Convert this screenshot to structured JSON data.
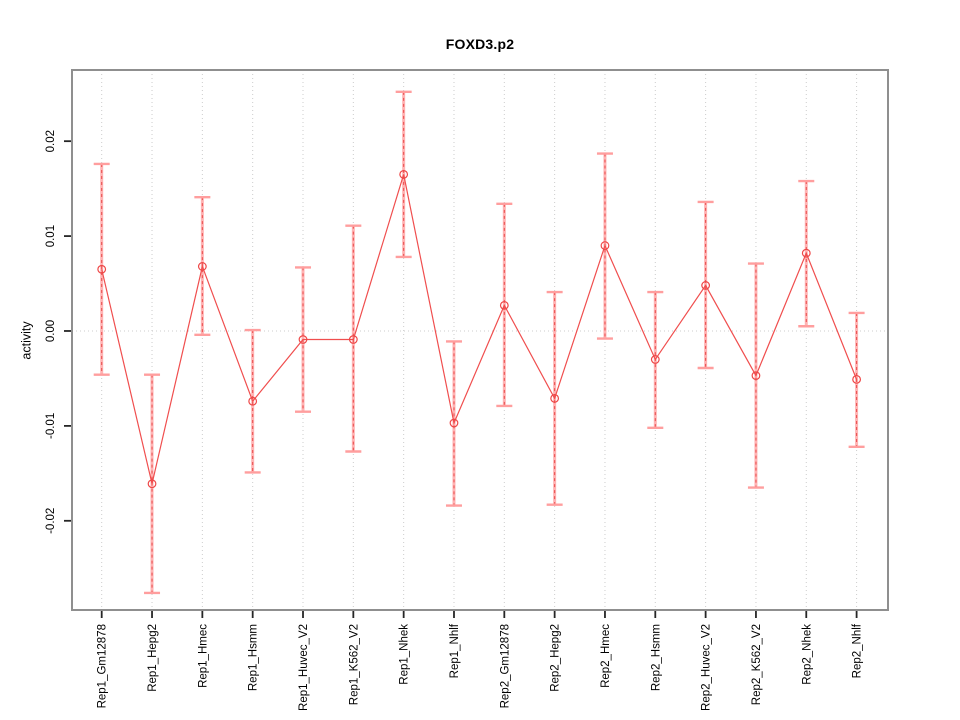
{
  "figure": {
    "title": "FOXD3.p2",
    "ylabel": "activity"
  },
  "chart_data": {
    "type": "line",
    "title": "FOXD3.p2",
    "xlabel": "",
    "ylabel": "activity",
    "categories": [
      "Rep1_Gm12878",
      "Rep1_Hepg2",
      "Rep1_Hmec",
      "Rep1_Hsmm",
      "Rep1_Huvec_V2",
      "Rep1_K562_V2",
      "Rep1_Nhek",
      "Rep1_Nhlf",
      "Rep2_Gm12878",
      "Rep2_Hepg2",
      "Rep2_Hmec",
      "Rep2_Hsmm",
      "Rep2_Huvec_V2",
      "Rep2_K562_V2",
      "Rep2_Nhek",
      "Rep2_Nhlf"
    ],
    "series": [
      {
        "name": "activity",
        "values": [
          0.0065,
          -0.0161,
          0.0068,
          -0.0074,
          -0.0009,
          -0.0009,
          0.0165,
          -0.0097,
          0.0027,
          -0.0071,
          0.009,
          -0.003,
          0.0048,
          -0.0047,
          0.0082,
          -0.0051
        ]
      },
      {
        "name": "ci_high",
        "values": [
          0.0176,
          -0.0046,
          0.0141,
          0.0001,
          0.0067,
          0.0111,
          0.0252,
          -0.0011,
          0.0134,
          0.0041,
          0.0187,
          0.0041,
          0.0136,
          0.0071,
          0.0158,
          0.0019
        ]
      },
      {
        "name": "ci_low",
        "values": [
          -0.0046,
          -0.0276,
          -0.0004,
          -0.0149,
          -0.0085,
          -0.0127,
          0.0078,
          -0.0184,
          -0.0079,
          -0.0183,
          -0.0008,
          -0.0102,
          -0.0039,
          -0.0165,
          0.0005,
          -0.0122
        ]
      }
    ],
    "yticks": [
      -0.02,
      -0.01,
      0,
      0.01,
      0.02
    ],
    "ytick_labels": [
      "-0.02",
      "-0.01",
      "0.00",
      "0.01",
      "0.02"
    ],
    "ylim": [
      -0.0294,
      0.0275
    ],
    "grid": "vertical dotted line per category; horizontal dotted line at zero",
    "legend": "none",
    "marker": "open-circle",
    "colors": {
      "line": "#f04e4e",
      "point": "#ee4747",
      "error_bar": "#ffb3b3",
      "error_bar_dash": "#e84c4c",
      "error_cap": "#ff9e9e",
      "grid": "#cccccc",
      "box": "#8f8f8f",
      "tick": "#262626",
      "text": "#000000"
    }
  }
}
